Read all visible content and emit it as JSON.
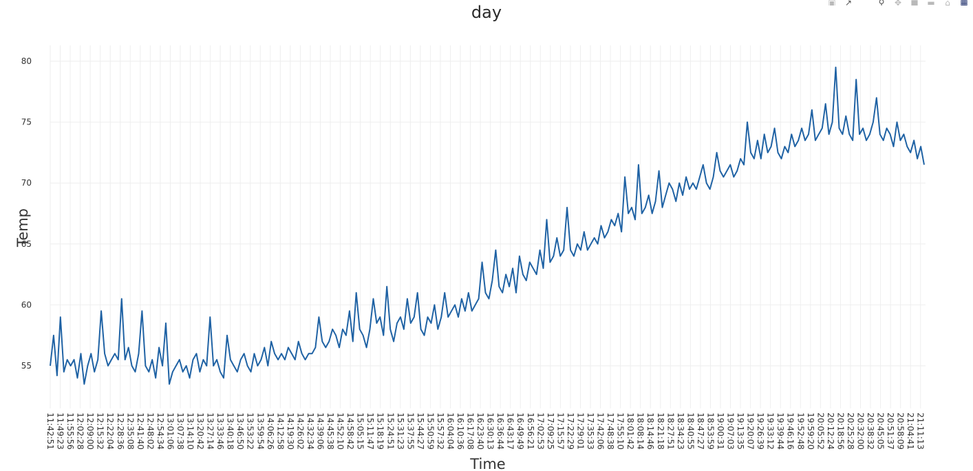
{
  "title": "day",
  "modebar": {
    "icons": [
      "camera-icon",
      "autoscale-icon",
      "zoom-icon",
      "pan-icon",
      "zoom-in-icon",
      "zoom-out-icon",
      "home-icon",
      "plotly-logo-icon"
    ]
  },
  "colors": {
    "line": "#1f62a4",
    "grid": "#eeeeee",
    "text": "#333333"
  },
  "chart_data": {
    "type": "line",
    "title": "day",
    "xlabel": "Time",
    "ylabel": "Temp",
    "ylim": [
      51.5,
      81.3
    ],
    "yticks": [
      55,
      60,
      65,
      70,
      75,
      80
    ],
    "grid": true,
    "legend": "none",
    "x_range": [
      "11:42:51",
      "21:13:00"
    ],
    "xtick_labels": [
      "11:42:51",
      "11:49:23",
      "11:55:56",
      "12:02:28",
      "12:09:00",
      "12:15:32",
      "12:22:04",
      "12:28:36",
      "12:35:08",
      "12:41:40",
      "12:48:02",
      "12:54:34",
      "13:01:06",
      "13:07:38",
      "13:14:10",
      "13:20:42",
      "13:27:14",
      "13:33:46",
      "13:40:18",
      "13:46:50",
      "13:53:22",
      "13:59:54",
      "14:06:26",
      "14:12:58",
      "14:19:30",
      "14:26:02",
      "14:32:34",
      "14:39:06",
      "14:45:38",
      "14:52:10",
      "14:58:42",
      "15:05:15",
      "15:11:47",
      "15:18:19",
      "15:24:51",
      "15:31:23",
      "15:37:55",
      "15:44:27",
      "15:50:59",
      "15:57:32",
      "16:04:04",
      "16:10:36",
      "16:17:08",
      "16:23:40",
      "16:30:13",
      "16:36:44",
      "16:43:17",
      "16:49:49",
      "16:56:21",
      "17:02:53",
      "17:09:25",
      "17:15:57",
      "17:22:29",
      "17:29:01",
      "17:35:33",
      "17:42:06",
      "17:48:38",
      "17:55:10",
      "18:01:42",
      "18:08:14",
      "18:14:46",
      "18:21:18",
      "18:27:51",
      "18:34:23",
      "18:40:55",
      "18:47:27",
      "18:53:59",
      "19:00:31",
      "19:07:03",
      "19:13:35",
      "19:20:07",
      "19:26:39",
      "19:33:12",
      "19:39:44",
      "19:46:16",
      "19:52:48",
      "19:59:20",
      "20:05:52",
      "20:12:24",
      "20:18:56",
      "20:25:28",
      "20:32:00",
      "20:38:32",
      "20:45:05",
      "20:51:37",
      "20:58:09",
      "21:04:41",
      "21:11:13"
    ],
    "series": [
      {
        "values": [
          55.0,
          57.5,
          54.2,
          59.0,
          54.5,
          55.5,
          55.0,
          55.5,
          54.0,
          56.0,
          53.5,
          55.0,
          56.0,
          54.5,
          55.5,
          59.5,
          56.0,
          55.0,
          55.5,
          56.0,
          55.5,
          60.5,
          55.5,
          56.5,
          55.0,
          54.5,
          56.0,
          59.5,
          55.0,
          54.5,
          55.5,
          54.0,
          56.5,
          55.0,
          58.5,
          53.5,
          54.5,
          55.0,
          55.5,
          54.5,
          55.0,
          54.0,
          55.5,
          56.0,
          54.5,
          55.5,
          55.0,
          59.0,
          55.0,
          55.5,
          54.5,
          54.0,
          57.5,
          55.5,
          55.0,
          54.5,
          55.5,
          56.0,
          55.0,
          54.5,
          56.0,
          55.0,
          55.5,
          56.5,
          55.0,
          57.0,
          56.0,
          55.5,
          56.0,
          55.5,
          56.5,
          56.0,
          55.5,
          57.0,
          56.0,
          55.5,
          56.0,
          56.0,
          56.5,
          59.0,
          57.0,
          56.5,
          57.0,
          58.0,
          57.5,
          56.5,
          58.0,
          57.5,
          59.5,
          57.0,
          61.0,
          58.0,
          57.5,
          56.5,
          58.0,
          60.5,
          58.5,
          59.0,
          57.5,
          61.5,
          58.0,
          57.0,
          58.5,
          59.0,
          58.0,
          60.5,
          58.5,
          59.0,
          61.0,
          58.0,
          57.5,
          59.0,
          58.5,
          60.0,
          58.0,
          59.0,
          61.0,
          59.0,
          59.5,
          60.0,
          59.0,
          60.5,
          59.5,
          61.0,
          59.5,
          60.0,
          60.5,
          63.5,
          61.0,
          60.5,
          62.0,
          64.5,
          61.5,
          61.0,
          62.5,
          61.5,
          63.0,
          61.0,
          64.0,
          62.5,
          62.0,
          63.5,
          63.0,
          62.5,
          64.5,
          63.0,
          67.0,
          63.5,
          64.0,
          65.5,
          64.0,
          64.5,
          68.0,
          64.5,
          64.0,
          65.0,
          64.5,
          66.0,
          64.5,
          65.0,
          65.5,
          65.0,
          66.5,
          65.5,
          66.0,
          67.0,
          66.5,
          67.5,
          66.0,
          70.5,
          67.5,
          68.0,
          67.0,
          71.5,
          67.5,
          68.0,
          69.0,
          67.5,
          68.5,
          71.0,
          68.0,
          69.0,
          70.0,
          69.5,
          68.5,
          70.0,
          69.0,
          70.5,
          69.5,
          70.0,
          69.5,
          70.5,
          71.5,
          70.0,
          69.5,
          70.5,
          72.5,
          71.0,
          70.5,
          71.0,
          71.5,
          70.5,
          71.0,
          72.0,
          71.5,
          75.0,
          72.5,
          72.0,
          73.5,
          72.0,
          74.0,
          72.5,
          73.0,
          74.5,
          72.5,
          72.0,
          73.0,
          72.5,
          74.0,
          73.0,
          73.5,
          74.5,
          73.5,
          74.0,
          76.0,
          73.5,
          74.0,
          74.5,
          76.5,
          74.0,
          75.0,
          79.5,
          74.5,
          74.0,
          75.5,
          74.0,
          73.5,
          78.5,
          74.0,
          74.5,
          73.5,
          74.0,
          75.0,
          77.0,
          74.0,
          73.5,
          74.5,
          74.0,
          73.0,
          75.0,
          73.5,
          74.0,
          73.0,
          72.5,
          73.5,
          72.0,
          73.0,
          71.5
        ]
      }
    ]
  }
}
